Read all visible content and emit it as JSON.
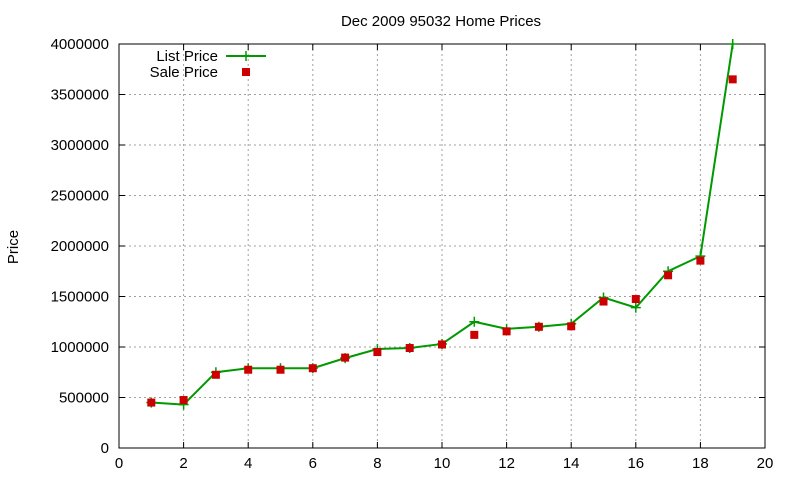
{
  "chart_data": {
    "type": "line",
    "title": "Dec 2009 95032 Home Prices",
    "xlabel": "",
    "ylabel": "Price",
    "xlim": [
      0,
      20
    ],
    "ylim": [
      0,
      4000000
    ],
    "xticks": [
      0,
      2,
      4,
      6,
      8,
      10,
      12,
      14,
      16,
      18,
      20
    ],
    "yticks": [
      0,
      500000,
      1000000,
      1500000,
      2000000,
      2500000,
      3000000,
      3500000,
      4000000
    ],
    "grid": true,
    "legend_position": "top-left",
    "series": [
      {
        "name": "List Price",
        "style": "line+cross",
        "color": "#009900",
        "x": [
          1,
          2,
          3,
          4,
          5,
          6,
          7,
          8,
          9,
          10,
          11,
          12,
          13,
          14,
          15,
          16,
          17,
          18,
          19
        ],
        "values": [
          450000,
          430000,
          750000,
          790000,
          790000,
          790000,
          890000,
          980000,
          990000,
          1030000,
          1250000,
          1180000,
          1200000,
          1230000,
          1490000,
          1390000,
          1750000,
          1900000,
          4000000
        ]
      },
      {
        "name": "Sale Price",
        "style": "square",
        "color": "#cc0000",
        "x": [
          1,
          2,
          3,
          4,
          5,
          6,
          7,
          8,
          9,
          10,
          11,
          12,
          13,
          14,
          15,
          16,
          17,
          18,
          19
        ],
        "values": [
          450000,
          475000,
          725000,
          775000,
          775000,
          790000,
          895000,
          950000,
          990000,
          1025000,
          1120000,
          1155000,
          1200000,
          1205000,
          1450000,
          1475000,
          1710000,
          1855000,
          3650000
        ]
      }
    ]
  }
}
